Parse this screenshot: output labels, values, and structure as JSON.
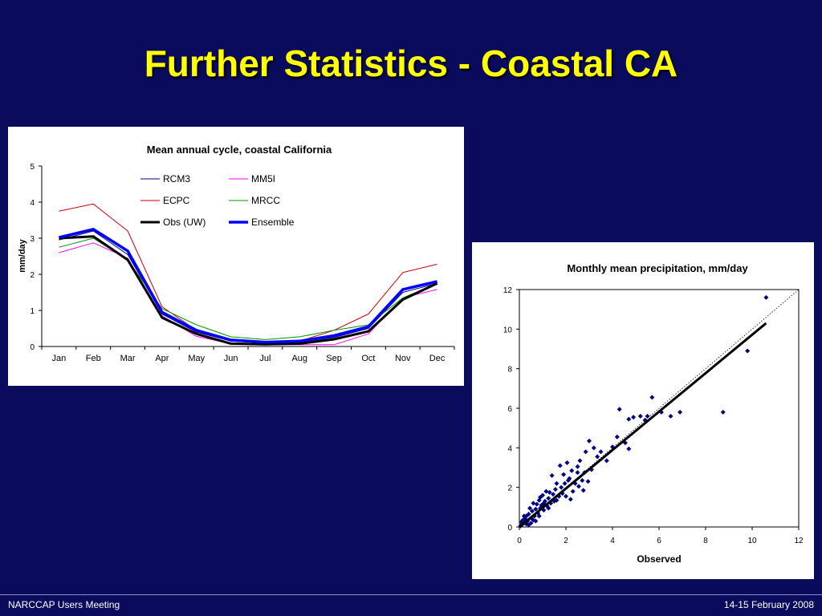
{
  "slide": {
    "title": "Further Statistics - Coastal CA",
    "footer_left": "NARCCAP Users Meeting",
    "footer_right": "14-15 February 2008"
  },
  "chart_data": [
    {
      "type": "line",
      "title": "Mean annual cycle, coastal California",
      "xlabel": "",
      "ylabel": "mm/day",
      "ylim": [
        0,
        5
      ],
      "yticks": [
        0,
        1,
        2,
        3,
        4,
        5
      ],
      "categories": [
        "Jan",
        "Feb",
        "Mar",
        "Apr",
        "May",
        "Jun",
        "Jul",
        "Aug",
        "Sep",
        "Oct",
        "Nov",
        "Dec"
      ],
      "legend": "top-right, inside, two columns",
      "grid": false,
      "series": [
        {
          "name": "RCM3",
          "color": "#000080",
          "width": 1,
          "values": [
            2.95,
            3.2,
            2.55,
            0.9,
            0.4,
            0.15,
            0.1,
            0.12,
            0.25,
            0.5,
            1.5,
            1.75
          ]
        },
        {
          "name": "MM5I",
          "color": "#ff00ff",
          "width": 1,
          "values": [
            2.6,
            2.87,
            2.45,
            0.85,
            0.28,
            0.08,
            0.05,
            0.05,
            0.05,
            0.35,
            1.35,
            1.58
          ]
        },
        {
          "name": "ECPC",
          "color": "#cc0000",
          "width": 1,
          "values": [
            3.75,
            3.95,
            3.2,
            1.1,
            0.45,
            0.15,
            0.1,
            0.15,
            0.45,
            0.9,
            2.05,
            2.28
          ]
        },
        {
          "name": "MRCC",
          "color": "#009900",
          "width": 1,
          "values": [
            2.75,
            3.0,
            2.4,
            1.05,
            0.6,
            0.27,
            0.19,
            0.27,
            0.45,
            0.6,
            1.35,
            1.75
          ]
        },
        {
          "name": "Obs (UW)",
          "color": "#000000",
          "width": 3,
          "values": [
            3.0,
            3.05,
            2.4,
            0.8,
            0.35,
            0.08,
            0.06,
            0.08,
            0.2,
            0.42,
            1.3,
            1.75
          ]
        },
        {
          "name": "Ensemble",
          "color": "#0000ff",
          "width": 3.5,
          "values": [
            3.02,
            3.25,
            2.65,
            0.95,
            0.45,
            0.18,
            0.12,
            0.15,
            0.3,
            0.55,
            1.58,
            1.8
          ]
        }
      ]
    },
    {
      "type": "scatter",
      "title": "Monthly mean precipitation, mm/day",
      "xlabel": "Observed",
      "ylabel": "",
      "xlim": [
        0,
        12
      ],
      "ylim": [
        0,
        12
      ],
      "xticks": [
        0,
        2,
        4,
        6,
        8,
        10,
        12
      ],
      "yticks": [
        0,
        2,
        4,
        6,
        8,
        10,
        12
      ],
      "grid": false,
      "marker_color": "#000080",
      "fit_line": {
        "x": [
          0,
          10.6
        ],
        "y": [
          0,
          10.3
        ],
        "color": "#000000"
      },
      "one_to_one": {
        "x": [
          0,
          12
        ],
        "y": [
          0,
          12
        ],
        "style": "dotted"
      },
      "points": [
        [
          10.6,
          11.6
        ],
        [
          9.8,
          8.9
        ],
        [
          8.75,
          5.8
        ],
        [
          6.9,
          5.8
        ],
        [
          6.5,
          5.6
        ],
        [
          6.1,
          5.8
        ],
        [
          5.7,
          6.55
        ],
        [
          5.5,
          5.6
        ],
        [
          5.4,
          5.4
        ],
        [
          5.2,
          5.6
        ],
        [
          4.9,
          5.55
        ],
        [
          4.7,
          5.45
        ],
        [
          4.7,
          3.95
        ],
        [
          4.55,
          4.25
        ],
        [
          4.3,
          5.95
        ],
        [
          4.2,
          4.55
        ],
        [
          4.0,
          4.05
        ],
        [
          3.75,
          3.35
        ],
        [
          3.5,
          3.8
        ],
        [
          3.35,
          3.55
        ],
        [
          3.2,
          4.0
        ],
        [
          3.1,
          2.9
        ],
        [
          3.0,
          4.35
        ],
        [
          2.95,
          2.3
        ],
        [
          2.85,
          3.8
        ],
        [
          2.8,
          2.75
        ],
        [
          2.75,
          1.85
        ],
        [
          2.7,
          2.35
        ],
        [
          2.6,
          3.35
        ],
        [
          2.5,
          2.75
        ],
        [
          2.5,
          3.05
        ],
        [
          2.4,
          2.2
        ],
        [
          2.3,
          1.8
        ],
        [
          2.25,
          2.85
        ],
        [
          2.2,
          1.4
        ],
        [
          2.1,
          2.35
        ],
        [
          2.05,
          3.25
        ],
        [
          2.0,
          1.55
        ],
        [
          1.95,
          2.2
        ],
        [
          1.9,
          2.65
        ],
        [
          1.85,
          1.7
        ],
        [
          1.8,
          2.0
        ],
        [
          1.75,
          3.1
        ],
        [
          1.7,
          1.55
        ],
        [
          1.6,
          2.2
        ],
        [
          1.55,
          1.9
        ],
        [
          1.5,
          1.3
        ],
        [
          1.45,
          1.65
        ],
        [
          1.4,
          2.6
        ],
        [
          1.35,
          1.2
        ],
        [
          1.3,
          1.75
        ],
        [
          1.25,
          1.45
        ],
        [
          1.2,
          1.05
        ],
        [
          1.15,
          1.8
        ],
        [
          1.1,
          1.3
        ],
        [
          1.05,
          0.85
        ],
        [
          1.0,
          1.6
        ],
        [
          0.95,
          1.1
        ],
        [
          0.9,
          0.95
        ],
        [
          0.85,
          1.35
        ],
        [
          0.8,
          0.7
        ],
        [
          0.75,
          1.15
        ],
        [
          0.7,
          0.9
        ],
        [
          0.65,
          0.55
        ],
        [
          0.6,
          1.2
        ],
        [
          0.55,
          0.8
        ],
        [
          0.5,
          0.45
        ],
        [
          0.45,
          0.95
        ],
        [
          0.4,
          0.65
        ],
        [
          0.35,
          0.3
        ],
        [
          0.3,
          0.55
        ],
        [
          0.25,
          0.4
        ],
        [
          0.2,
          0.2
        ],
        [
          0.15,
          0.35
        ],
        [
          0.1,
          0.1
        ],
        [
          0.08,
          0.25
        ],
        [
          0.05,
          0.05
        ],
        [
          0.3,
          0.15
        ],
        [
          0.6,
          0.35
        ],
        [
          0.9,
          1.5
        ],
        [
          1.25,
          0.95
        ],
        [
          1.6,
          1.35
        ],
        [
          2.15,
          2.45
        ],
        [
          2.55,
          2.05
        ],
        [
          0.5,
          0.2
        ],
        [
          0.7,
          0.3
        ],
        [
          0.85,
          0.55
        ],
        [
          1.05,
          1.2
        ],
        [
          0.4,
          0.1
        ],
        [
          0.2,
          0.55
        ]
      ]
    }
  ]
}
